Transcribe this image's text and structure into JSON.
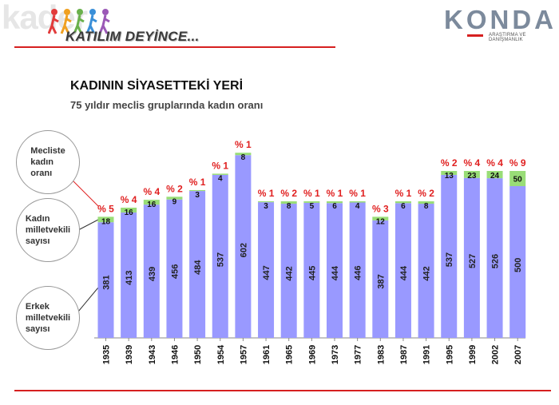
{
  "header": {
    "background_word": "kader",
    "campaign_label": "KATILIM DEYİNCE...",
    "logo_text": "KONDA",
    "logo_subtext": "ARAŞTIRMA VE DANIŞMANLIK"
  },
  "slide": {
    "title": "KADININ SİYASETTEKİ YERİ",
    "subtitle": "75 yıldır meclis gruplarında kadın oranı"
  },
  "legend_bubbles": {
    "share": "Mecliste\nkadın\noranı",
    "women": "Kadın\nmilletvekili\nsayısı",
    "men": "Erkek\nmilletvekili\nsayısı"
  },
  "colors": {
    "men_bar": "#9999ff",
    "women_bar": "#99dd77",
    "accent_red": "#d62020",
    "percent_label": "#e02020"
  },
  "chart_data": {
    "type": "bar",
    "stacked": true,
    "categories": [
      "1935",
      "1939",
      "1943",
      "1946",
      "1950",
      "1954",
      "1957",
      "1961",
      "1965",
      "1969",
      "1973",
      "1977",
      "1983",
      "1987",
      "1991",
      "1995",
      "1999",
      "2002",
      "2007"
    ],
    "series": [
      {
        "values": [
          381,
          413,
          439,
          456,
          484,
          537,
          602,
          447,
          442,
          445,
          444,
          446,
          387,
          444,
          442,
          537,
          527,
          526,
          500
        ]
      },
      {
        "values": [
          18,
          16,
          16,
          9,
          3,
          4,
          8,
          3,
          8,
          5,
          6,
          4,
          12,
          6,
          8,
          13,
          23,
          24,
          50
        ]
      }
    ],
    "percent_labels": [
      "% 5",
      "% 4",
      "% 4",
      "% 2",
      "% 1",
      "% 1",
      "% 1",
      "% 1",
      "% 2",
      "% 1",
      "% 1",
      "% 1",
      "% 3",
      "% 1",
      "% 2",
      "% 2",
      "% 4",
      "% 4",
      "% 9"
    ],
    "grid": false,
    "legend": "left"
  }
}
